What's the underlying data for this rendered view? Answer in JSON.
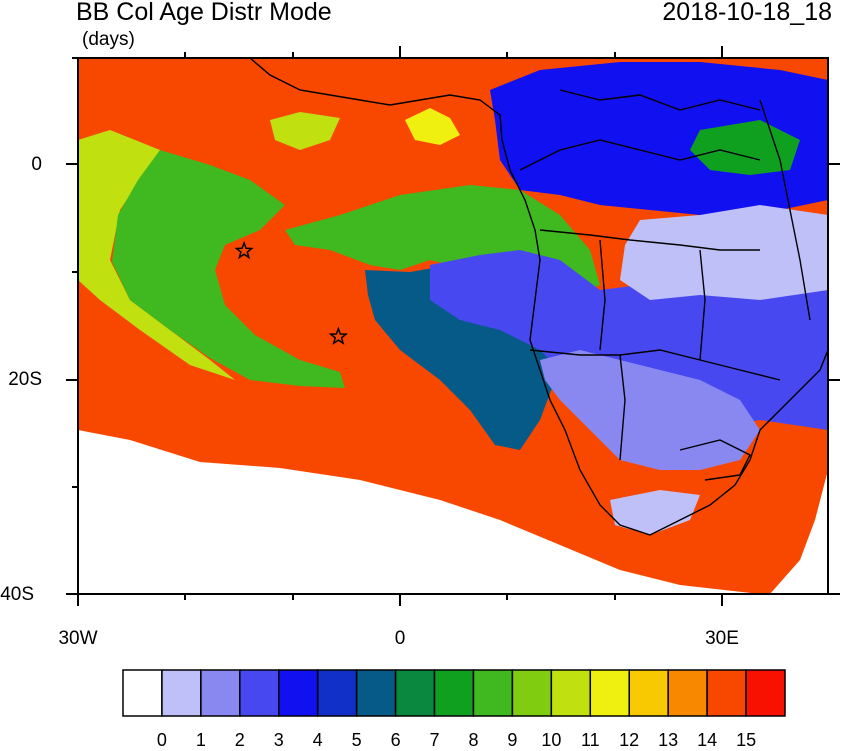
{
  "title": "BB Col Age Distr Mode",
  "units": "(days)",
  "datetime": "2018-10-18_18",
  "map": {
    "lon_range": [
      -30,
      40
    ],
    "lat_range": [
      -40,
      10
    ],
    "y_ticks": [
      "0",
      "20S",
      "40S"
    ],
    "x_ticks": [
      "30W",
      "0",
      "30E"
    ],
    "markers": [
      {
        "name": "star",
        "lon": -14.5,
        "lat": -8
      },
      {
        "name": "star",
        "lon": -5.7,
        "lat": -16
      }
    ]
  },
  "colorbar": {
    "labels": [
      "0",
      "1",
      "2",
      "3",
      "4",
      "5",
      "6",
      "7",
      "8",
      "9",
      "10",
      "11",
      "12",
      "13",
      "14",
      "15"
    ],
    "colors": [
      "#ffffff",
      "#c0c0f8",
      "#8888f0",
      "#4848f0",
      "#1010f0",
      "#1030c8",
      "#065a88",
      "#0a8840",
      "#10a020",
      "#40b820",
      "#80cc10",
      "#c0e010",
      "#f0f010",
      "#f8c800",
      "#f88800",
      "#f84800",
      "#f81000"
    ]
  },
  "field_colors": {
    "ocean_old": "#f84800",
    "green_mid": "#40b820",
    "lime": "#c0e010",
    "teal": "#065a88",
    "blue": "#4848f0",
    "light_blue": "#c0c0f8"
  }
}
